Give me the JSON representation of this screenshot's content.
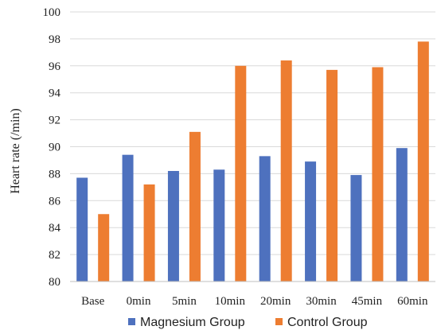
{
  "chart_data": {
    "type": "bar",
    "categories": [
      "Base",
      "0min",
      "5min",
      "10min",
      "20min",
      "30min",
      "45min",
      "60min"
    ],
    "series": [
      {
        "name": "Magnesium Group",
        "color": "#4e71be",
        "values": [
          87.7,
          89.4,
          88.2,
          88.3,
          89.3,
          88.9,
          87.9,
          89.9
        ]
      },
      {
        "name": "Control Group",
        "color": "#ed7d31",
        "values": [
          85.0,
          87.2,
          91.1,
          96.0,
          96.4,
          95.7,
          95.9,
          97.8
        ]
      }
    ],
    "ylabel": "Heart rate (/min)",
    "ylim": [
      80,
      100
    ],
    "yticks": [
      "80",
      "82",
      "84",
      "86",
      "88",
      "90",
      "92",
      "94",
      "96",
      "98",
      "100"
    ],
    "grid": true,
    "legend": "bottom"
  }
}
